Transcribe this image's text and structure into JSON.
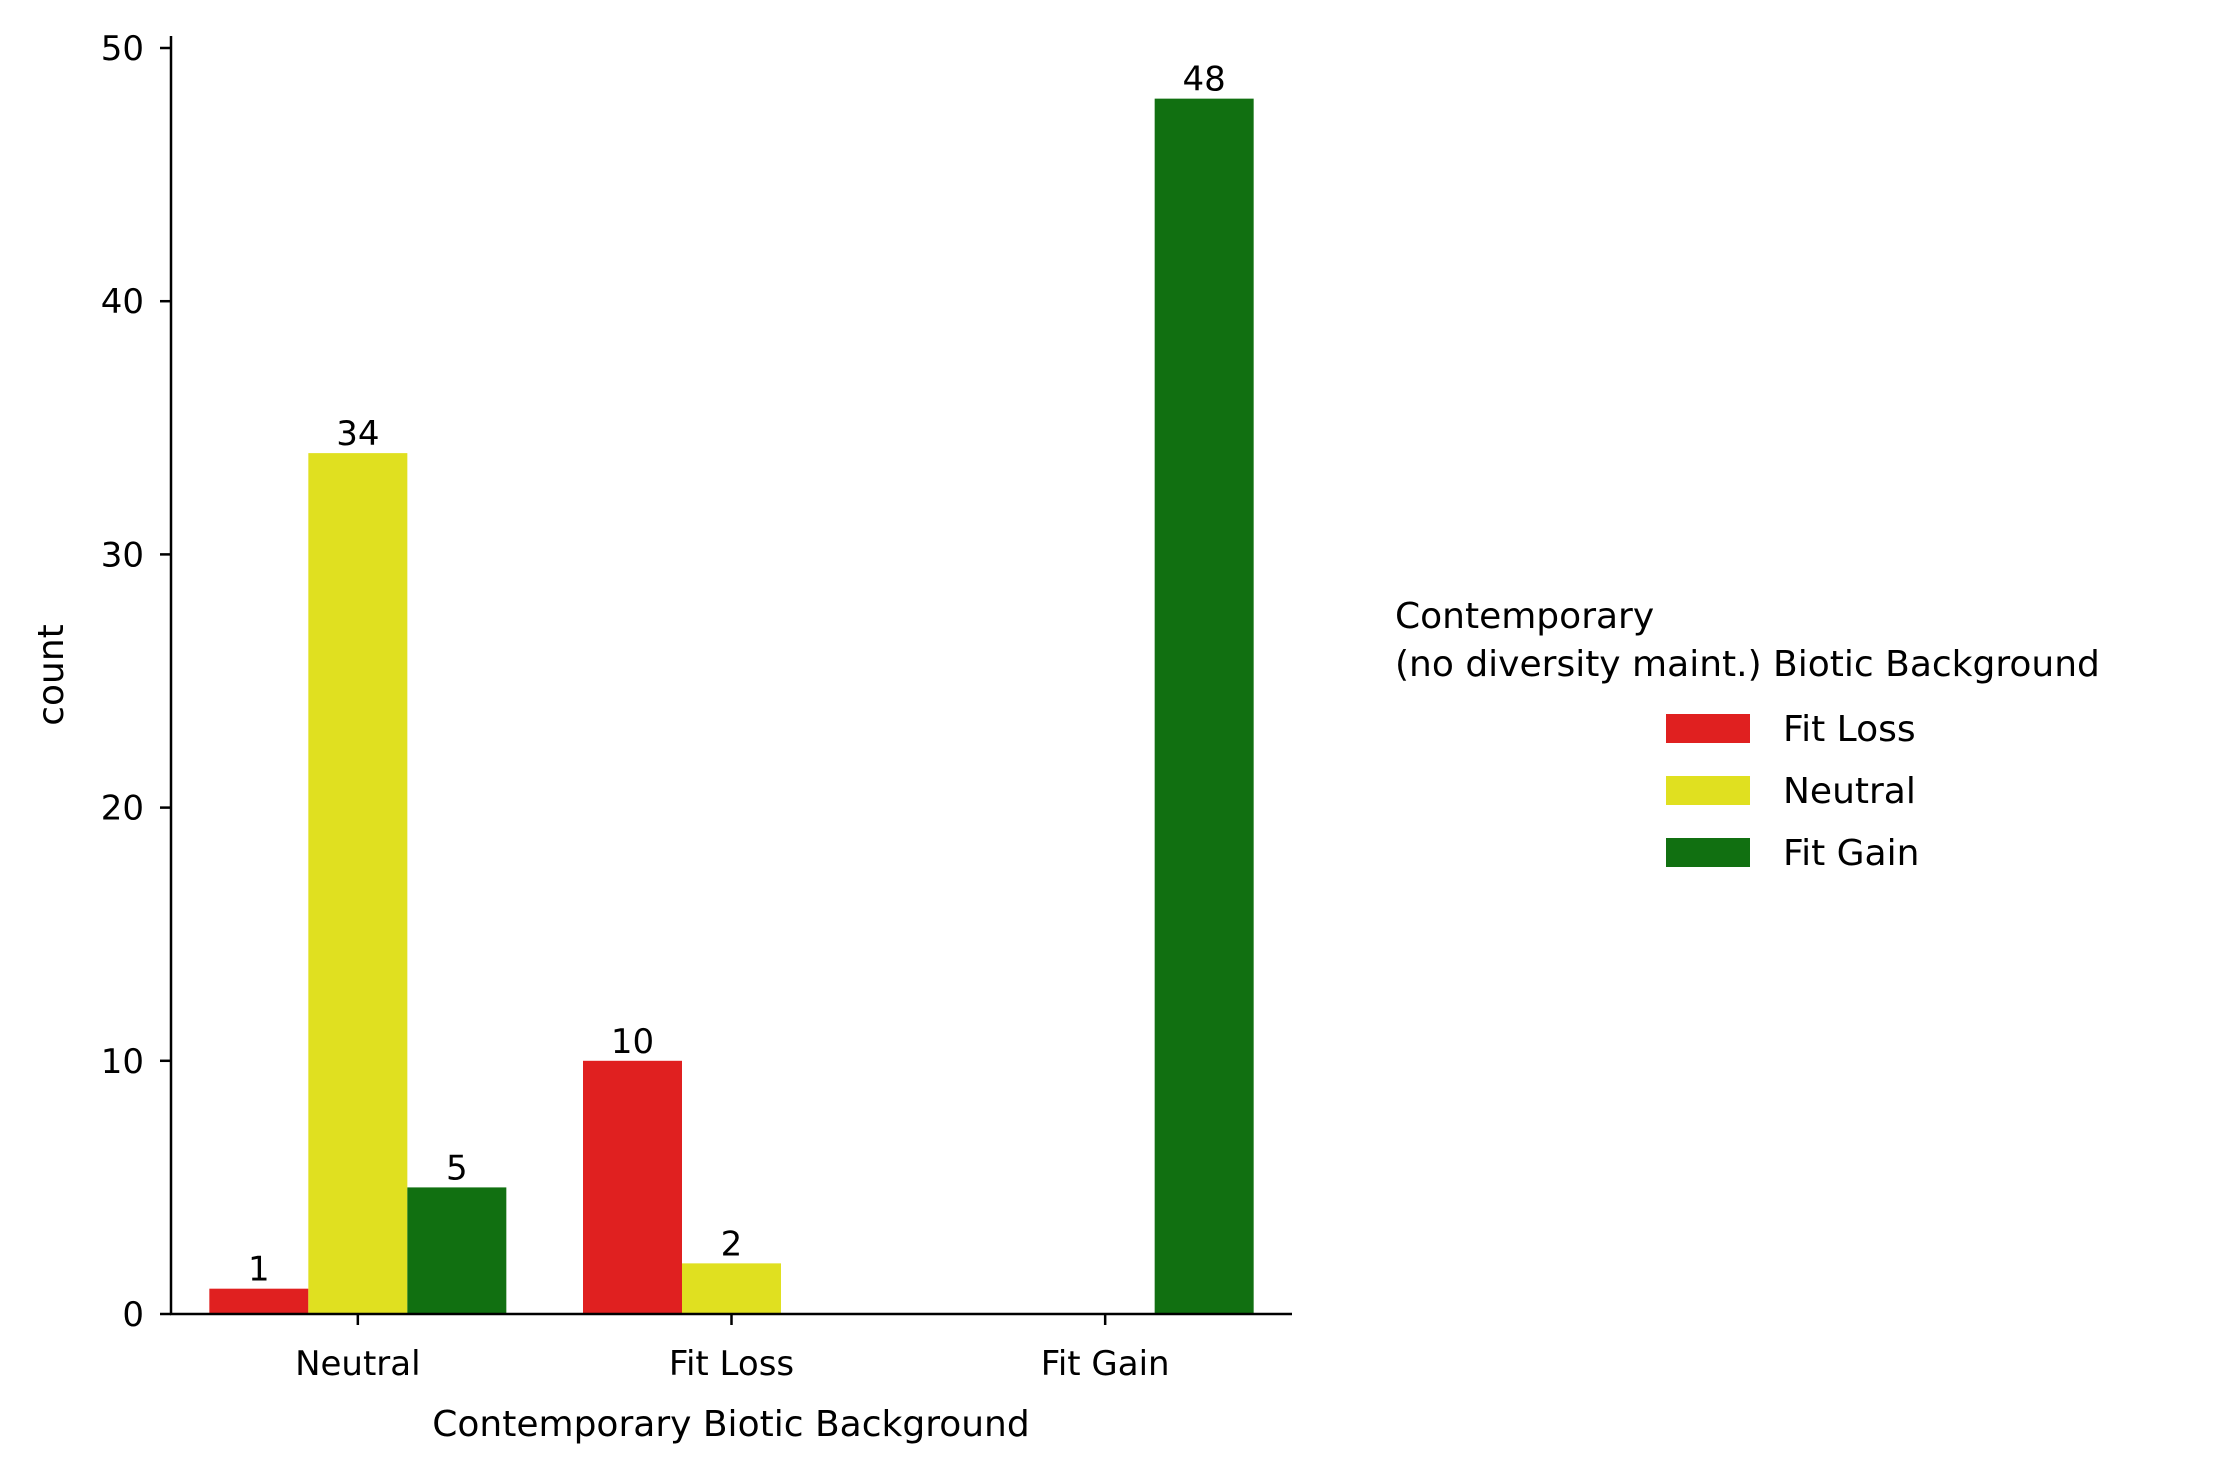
{
  "chart_data": {
    "type": "bar",
    "categories": [
      "Neutral",
      "Fit Loss",
      "Fit Gain"
    ],
    "series": [
      {
        "name": "Fit Loss",
        "color": "#e02020",
        "values": [
          1,
          10,
          0
        ]
      },
      {
        "name": "Neutral",
        "color": "#e0e020",
        "values": [
          34,
          2,
          0
        ]
      },
      {
        "name": "Fit Gain",
        "color": "#117011",
        "values": [
          5,
          0,
          48
        ]
      }
    ],
    "data_labels": [
      [
        "1",
        "10",
        ""
      ],
      [
        "34",
        "2",
        ""
      ],
      [
        "5",
        "",
        "48"
      ]
    ],
    "xlabel": "Contemporary Biotic Background",
    "ylabel": "count",
    "ylim": [
      0,
      50
    ],
    "yticks": [
      0,
      10,
      20,
      30,
      40,
      50
    ],
    "grid": false,
    "legend": {
      "title_line1": "Contemporary",
      "title_line2": "(no diversity maint.) Biotic Background",
      "placement": "right"
    }
  }
}
